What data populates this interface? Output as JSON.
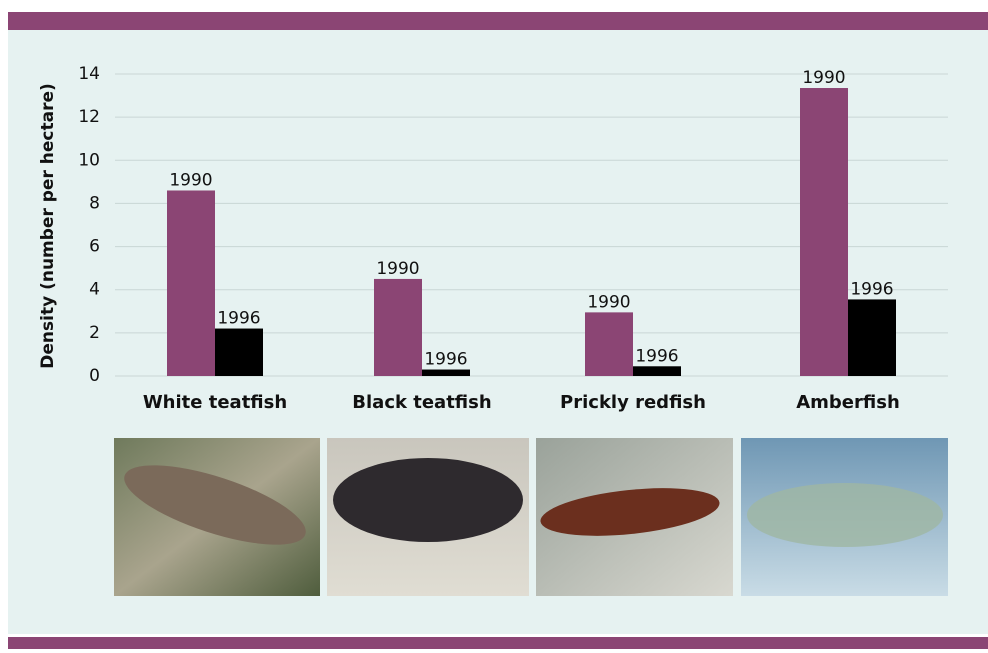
{
  "chart_data": {
    "type": "bar",
    "ylabel": "Density (number per hectare)",
    "categories": [
      "White teatfish",
      "Black teatfish",
      "Prickly redfish",
      "Amberfish"
    ],
    "series": [
      {
        "name": "1990",
        "color": "#8b4574",
        "values": [
          8.6,
          4.5,
          2.95,
          13.35
        ]
      },
      {
        "name": "1996",
        "color": "#000000",
        "values": [
          2.2,
          0.3,
          0.45,
          3.55
        ]
      }
    ],
    "ylim": [
      0,
      14
    ],
    "yticks": [
      0,
      2,
      4,
      6,
      8,
      10,
      12,
      14
    ],
    "grid": true
  }
}
